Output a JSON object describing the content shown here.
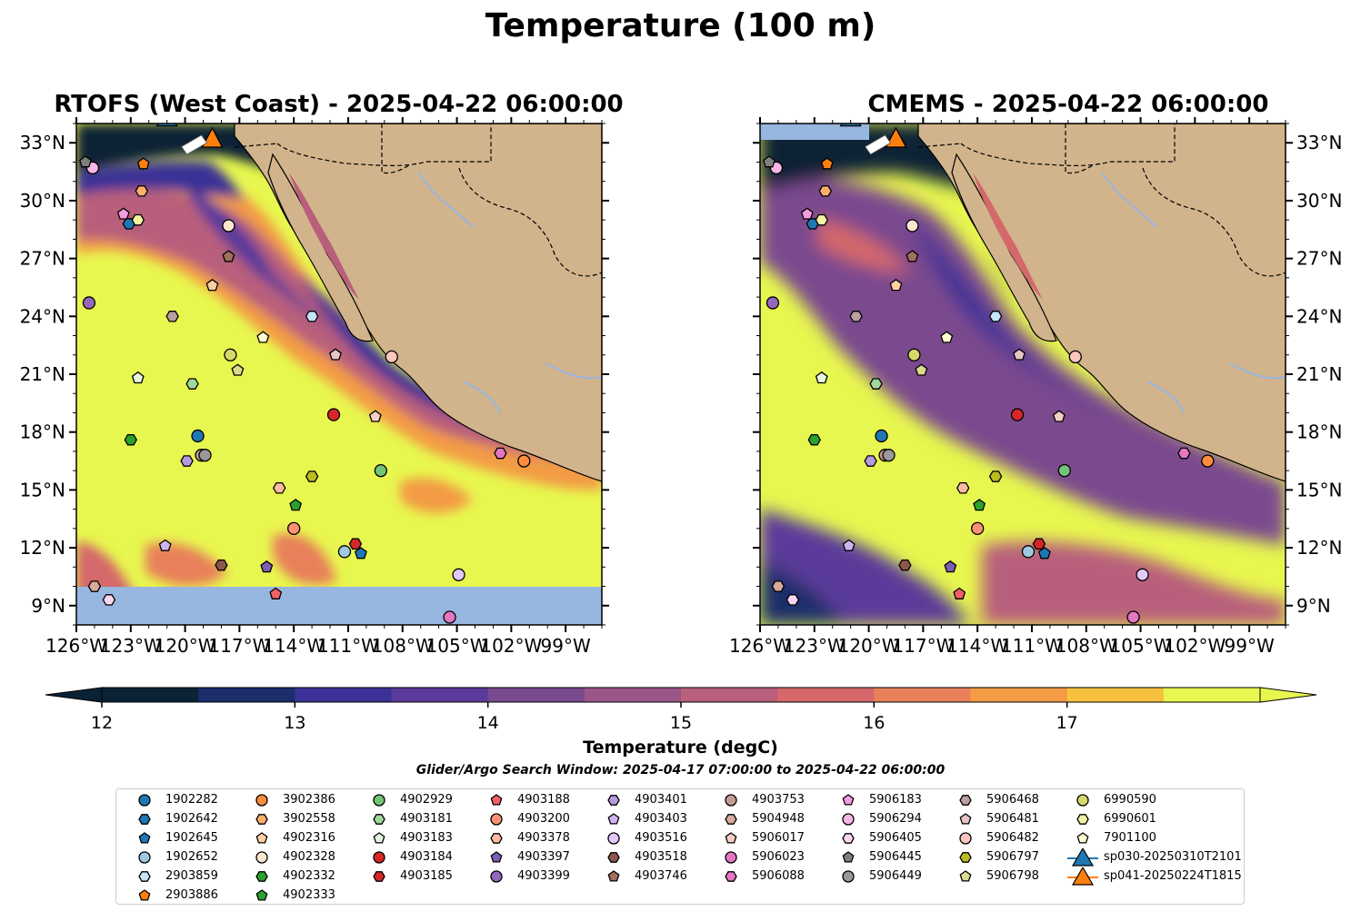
{
  "title": "Temperature (100 m)",
  "panels": [
    {
      "title": "RTOFS (West Coast) - 2025-04-22 06:00:00"
    },
    {
      "title": "CMEMS - 2025-04-22 06:00:00"
    }
  ],
  "colorbar": {
    "label": "Temperature (degC)",
    "ticks": [
      "12",
      "13",
      "14",
      "15",
      "16",
      "17"
    ],
    "levels": [
      12.0,
      12.5,
      13.0,
      13.5,
      14.0,
      14.5,
      15.0,
      15.5,
      16.0,
      16.5,
      17.0,
      17.5
    ],
    "colors": [
      "#0a2236",
      "#1b2d6b",
      "#3b3196",
      "#5a3a9a",
      "#7a4a8e",
      "#9a5688",
      "#b85f7c",
      "#d4686a",
      "#e8805a",
      "#f39b45",
      "#f7c13e",
      "#e8f74f"
    ],
    "extend": "both"
  },
  "search_window": "Glider/Argo Search Window: 2025-04-17 07:00:00 to 2025-04-22 06:00:00",
  "colors": {
    "land": "#d2b48c",
    "ocean_nodata": "#97b6e0",
    "warm": "#e8f74f",
    "cold": "#0a2236"
  },
  "chart_data": [
    {
      "type": "heatmap",
      "title": "RTOFS (West Coast) - 2025-04-22 06:00:00",
      "x_ticks": [
        "126°W",
        "123°W",
        "120°W",
        "117°W",
        "114°W",
        "111°W",
        "108°W",
        "105°W",
        "102°W",
        "99°W"
      ],
      "y_ticks": [
        "9°N",
        "12°N",
        "15°N",
        "18°N",
        "21°N",
        "24°N",
        "27°N",
        "30°N",
        "33°N"
      ],
      "xlim": [
        -126,
        -97
      ],
      "ylim": [
        8,
        34
      ],
      "variable": "Temperature (100 m)",
      "units": "degC"
    },
    {
      "type": "heatmap",
      "title": "CMEMS - 2025-04-22 06:00:00",
      "x_ticks": [
        "126°W",
        "123°W",
        "120°W",
        "117°W",
        "114°W",
        "111°W",
        "108°W",
        "105°W",
        "102°W",
        "99°W"
      ],
      "y_ticks": [
        "9°N",
        "12°N",
        "15°N",
        "18°N",
        "21°N",
        "24°N",
        "27°N",
        "30°N",
        "33°N"
      ],
      "xlim": [
        -126,
        -97
      ],
      "ylim": [
        8,
        34
      ],
      "variable": "Temperature (100 m)",
      "units": "degC"
    }
  ],
  "floats": [
    {
      "id": "1902282",
      "marker": "circle",
      "color": "#1f77b4",
      "lon": -119.3,
      "lat": 17.8
    },
    {
      "id": "1902642",
      "marker": "hexagon",
      "color": "#1f77b4",
      "lon": -123.1,
      "lat": 28.8
    },
    {
      "id": "1902645",
      "marker": "pentagon",
      "color": "#1f77b4",
      "lon": -110.3,
      "lat": 11.7
    },
    {
      "id": "1902652",
      "marker": "circle",
      "color": "#9ecae1",
      "lon": -111.2,
      "lat": 11.8
    },
    {
      "id": "2903859",
      "marker": "hexagon",
      "color": "#c6e4f5",
      "lon": -113.0,
      "lat": 24.0
    },
    {
      "id": "2903886",
      "marker": "pentagon",
      "color": "#ff7f0e",
      "lon": -122.3,
      "lat": 31.9
    },
    {
      "id": "3902386",
      "marker": "circle",
      "color": "#fd8d3c",
      "lon": -101.3,
      "lat": 16.5
    },
    {
      "id": "3902558",
      "marker": "hexagon",
      "color": "#fdae6b",
      "lon": -122.4,
      "lat": 30.5
    },
    {
      "id": "4902316",
      "marker": "pentagon",
      "color": "#fdd0a2",
      "lon": -118.5,
      "lat": 25.6
    },
    {
      "id": "4902328",
      "marker": "circle",
      "color": "#fee6ce",
      "lon": -117.6,
      "lat": 28.7
    },
    {
      "id": "4902332",
      "marker": "hexagon",
      "color": "#2ca02c",
      "lon": -123.0,
      "lat": 17.6
    },
    {
      "id": "4902333",
      "marker": "pentagon",
      "color": "#2ca02c",
      "lon": -113.9,
      "lat": 14.2
    },
    {
      "id": "4902929",
      "marker": "circle",
      "color": "#74c476",
      "lon": -109.2,
      "lat": 16.0
    },
    {
      "id": "4903181",
      "marker": "hexagon",
      "color": "#a1d99b",
      "lon": -119.6,
      "lat": 20.5
    },
    {
      "id": "4903183",
      "marker": "pentagon",
      "color": "#e5f5e0",
      "lon": -122.6,
      "lat": 20.8
    },
    {
      "id": "4903184",
      "marker": "circle",
      "color": "#d62728",
      "lon": -111.8,
      "lat": 18.9
    },
    {
      "id": "4903185",
      "marker": "hexagon",
      "color": "#d62728",
      "lon": -110.6,
      "lat": 12.2
    },
    {
      "id": "4903188",
      "marker": "pentagon",
      "color": "#f06066",
      "lon": -115.0,
      "lat": 9.6
    },
    {
      "id": "4903200",
      "marker": "circle",
      "color": "#fc9272",
      "lon": -114.0,
      "lat": 13.0
    },
    {
      "id": "4903378",
      "marker": "hexagon",
      "color": "#fcbba1",
      "lon": -114.8,
      "lat": 15.1
    },
    {
      "id": "4903397",
      "marker": "pentagon",
      "color": "#7d5eb3",
      "lon": -115.5,
      "lat": 11.0
    },
    {
      "id": "4903399",
      "marker": "circle",
      "color": "#9467bd",
      "lon": -125.3,
      "lat": 24.7
    },
    {
      "id": "4903401",
      "marker": "hexagon",
      "color": "#b89ae0",
      "lon": -119.9,
      "lat": 16.5
    },
    {
      "id": "4903403",
      "marker": "pentagon",
      "color": "#cfb4f0",
      "lon": -121.1,
      "lat": 12.1
    },
    {
      "id": "4903516",
      "marker": "circle",
      "color": "#e2c9f7",
      "lon": -104.9,
      "lat": 10.6
    },
    {
      "id": "4903518",
      "marker": "hexagon",
      "color": "#8c564b",
      "lon": -118.0,
      "lat": 11.1
    },
    {
      "id": "4903746",
      "marker": "pentagon",
      "color": "#a0705e",
      "lon": -117.6,
      "lat": 27.1
    },
    {
      "id": "4903753",
      "marker": "circle",
      "color": "#c49c94",
      "lon": -119.1,
      "lat": 16.8
    },
    {
      "id": "5904948",
      "marker": "hexagon",
      "color": "#d9a99d",
      "lon": -125.0,
      "lat": 10.0
    },
    {
      "id": "5906017",
      "marker": "pentagon",
      "color": "#f2cfc2",
      "lon": -109.5,
      "lat": 18.8
    },
    {
      "id": "5906023",
      "marker": "circle",
      "color": "#e377c2",
      "lon": -105.4,
      "lat": 8.4
    },
    {
      "id": "5906088",
      "marker": "hexagon",
      "color": "#e377c2",
      "lon": -102.6,
      "lat": 16.9
    },
    {
      "id": "5906183",
      "marker": "pentagon",
      "color": "#f59be0",
      "lon": -123.4,
      "lat": 29.3
    },
    {
      "id": "5906294",
      "marker": "circle",
      "color": "#f7b6e6",
      "lon": -125.1,
      "lat": 31.7
    },
    {
      "id": "5906405",
      "marker": "hexagon",
      "color": "#fbd5f0",
      "lon": -124.2,
      "lat": 9.3
    },
    {
      "id": "5906445",
      "marker": "pentagon",
      "color": "#7f7f7f",
      "lon": -125.5,
      "lat": 32.0
    },
    {
      "id": "5906449",
      "marker": "circle",
      "color": "#999999",
      "lon": -118.9,
      "lat": 16.8
    },
    {
      "id": "5906468",
      "marker": "hexagon",
      "color": "#bca0a0",
      "lon": -120.7,
      "lat": 24.0
    },
    {
      "id": "5906481",
      "marker": "pentagon",
      "color": "#e8c4c4",
      "lon": -111.7,
      "lat": 22.0
    },
    {
      "id": "5906482",
      "marker": "circle",
      "color": "#fcc5c0",
      "lon": -108.6,
      "lat": 21.9
    },
    {
      "id": "5906797",
      "marker": "hexagon",
      "color": "#bcbd22",
      "lon": -113.0,
      "lat": 15.7
    },
    {
      "id": "5906798",
      "marker": "pentagon",
      "color": "#dbdb8d",
      "lon": -117.1,
      "lat": 21.2
    },
    {
      "id": "6990590",
      "marker": "circle",
      "color": "#d6d86a",
      "lon": -117.5,
      "lat": 22.0
    },
    {
      "id": "6990601",
      "marker": "hexagon",
      "color": "#f2f2a0",
      "lon": -122.6,
      "lat": 29.0
    },
    {
      "id": "7901100",
      "marker": "pentagon",
      "color": "#ffffd0",
      "lon": -115.7,
      "lat": 22.9
    }
  ],
  "gliders": [
    {
      "id": "sp030-20250310T2101",
      "marker": "triangle",
      "color": "#1f77b4",
      "lon": -121.0,
      "lat": 34.3
    },
    {
      "id": "sp041-20250224T1815",
      "marker": "triangle",
      "color": "#ff7f0e",
      "lon": -118.5,
      "lat": 33.2
    }
  ]
}
